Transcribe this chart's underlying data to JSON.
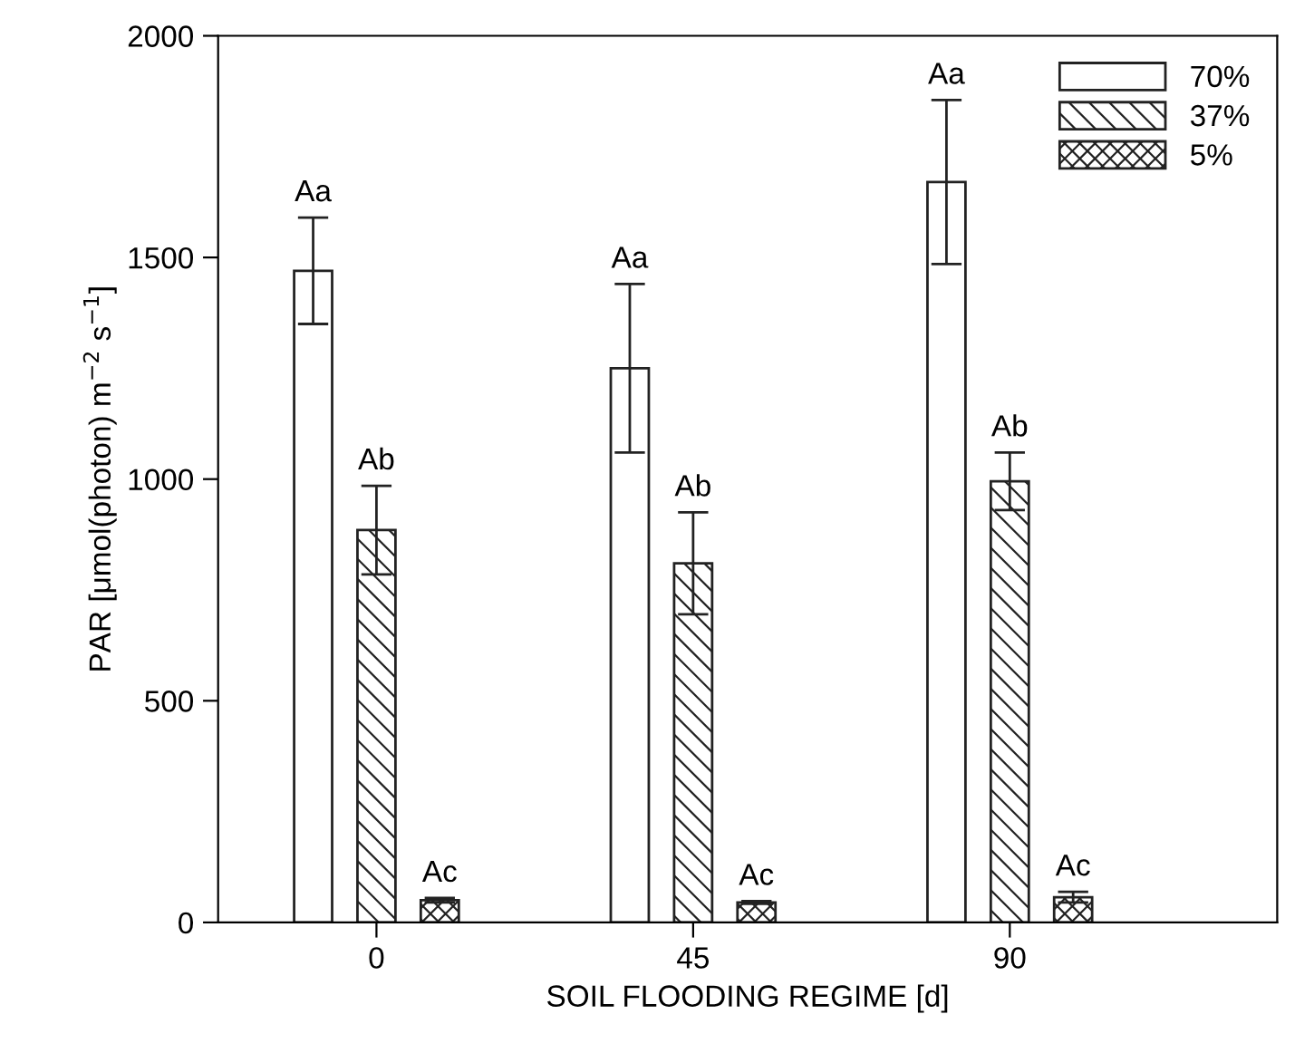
{
  "chart_data": {
    "type": "bar",
    "xlabel": "SOIL FLOODING REGIME [d]",
    "ylabel": "PAR [μmol(photon) m$^{−2}$ s$^{−1}$]",
    "x": [
      0,
      45,
      90
    ],
    "xlim": [
      -22.5,
      128
    ],
    "xticks": [
      0,
      45,
      90
    ],
    "ylim": [
      0,
      2000
    ],
    "yticks": [
      0,
      500,
      1000,
      1500,
      2000
    ],
    "series": [
      {
        "name": "70%",
        "color": "#ffffff",
        "values": [
          1470,
          1250,
          1670
        ],
        "errors": [
          120,
          190,
          185
        ]
      },
      {
        "name": "37%",
        "color": "#222222",
        "values": [
          885,
          810,
          995
        ],
        "errors": [
          100,
          115,
          65
        ]
      },
      {
        "name": "5%",
        "color": "#222222",
        "values": [
          50,
          45,
          57
        ],
        "errors": [
          5,
          3,
          12
        ]
      }
    ],
    "annotations": [
      {
        "text": "Aa",
        "x": -9,
        "y": 1590
      },
      {
        "text": "Ab",
        "x": 0,
        "y": 985
      },
      {
        "text": "Ac",
        "x": 9,
        "y": 55
      },
      {
        "text": "Aa",
        "x": 36,
        "y": 1440
      },
      {
        "text": "Ab",
        "x": 45,
        "y": 925
      },
      {
        "text": "Ac",
        "x": 54,
        "y": 48
      },
      {
        "text": "Aa",
        "x": 81,
        "y": 1855
      },
      {
        "text": "Ab",
        "x": 90,
        "y": 1060
      },
      {
        "text": "Ac",
        "x": 99,
        "y": 69
      }
    ],
    "legend": "top right",
    "grid": false
  }
}
